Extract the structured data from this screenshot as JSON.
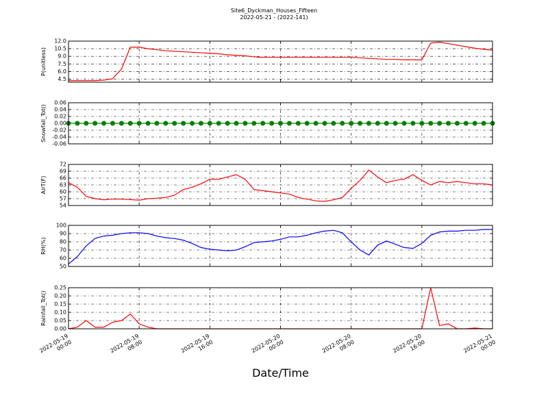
{
  "title": "Site6_Dyckman_Houses_Fifteen",
  "subtitle": "2022-05-21 - (2022-141)",
  "chart_data": [
    {
      "type": "line",
      "ylabel": "P(unitless)",
      "color": "#ff0000",
      "grid": true,
      "x": [
        "2022-05-19 00:00",
        "2022-05-19 01:00",
        "2022-05-19 02:00",
        "2022-05-19 03:00",
        "2022-05-19 04:00",
        "2022-05-19 05:00",
        "2022-05-19 06:00",
        "2022-05-19 07:00",
        "2022-05-19 08:00",
        "2022-05-19 09:00",
        "2022-05-19 10:00",
        "2022-05-19 11:00",
        "2022-05-19 12:00",
        "2022-05-19 13:00",
        "2022-05-19 14:00",
        "2022-05-19 15:00",
        "2022-05-19 16:00",
        "2022-05-19 17:00",
        "2022-05-19 18:00",
        "2022-05-19 19:00",
        "2022-05-19 20:00",
        "2022-05-19 21:00",
        "2022-05-19 22:00",
        "2022-05-19 23:00",
        "2022-05-20 00:00",
        "2022-05-20 01:00",
        "2022-05-20 02:00",
        "2022-05-20 03:00",
        "2022-05-20 04:00",
        "2022-05-20 05:00",
        "2022-05-20 06:00",
        "2022-05-20 07:00",
        "2022-05-20 08:00",
        "2022-05-20 09:00",
        "2022-05-20 10:00",
        "2022-05-20 11:00",
        "2022-05-20 12:00",
        "2022-05-20 13:00",
        "2022-05-20 14:00",
        "2022-05-20 15:00",
        "2022-05-20 16:00",
        "2022-05-20 17:00",
        "2022-05-20 18:00",
        "2022-05-20 19:00",
        "2022-05-20 20:00",
        "2022-05-20 21:00",
        "2022-05-20 22:00",
        "2022-05-20 23:00",
        "2022-05-21 00:00"
      ],
      "values": [
        4.2,
        4.2,
        4.2,
        4.2,
        4.3,
        4.6,
        6.5,
        10.8,
        10.8,
        10.5,
        10.3,
        10.1,
        10.0,
        9.9,
        9.8,
        9.7,
        9.6,
        9.5,
        9.3,
        9.2,
        9.1,
        8.9,
        8.8,
        8.8,
        8.8,
        8.8,
        8.8,
        8.8,
        8.8,
        8.8,
        8.8,
        8.8,
        8.8,
        8.7,
        8.6,
        8.5,
        8.4,
        8.4,
        8.3,
        8.3,
        8.3,
        11.6,
        11.8,
        11.5,
        11.2,
        10.9,
        10.6,
        10.4,
        10.2
      ],
      "xlim": [
        "2022-05-19 00:00",
        "2022-05-21 00:00"
      ],
      "xticks": [
        "2022-05-19 00:00",
        "2022-05-19 08:00",
        "2022-05-19 16:00",
        "2022-05-20 00:00",
        "2022-05-20 08:00",
        "2022-05-20 16:00",
        "2022-05-21 00:00"
      ],
      "ylim": [
        3.9,
        12
      ],
      "yticks": [
        {
          "value": 4.5,
          "label": "4.5"
        },
        {
          "value": 6,
          "label": "6.0"
        },
        {
          "value": 7.5,
          "label": "7.5"
        },
        {
          "value": 9,
          "label": "9.0"
        },
        {
          "value": 10.5,
          "label": "10.5"
        },
        {
          "value": 12,
          "label": "12.0"
        }
      ]
    },
    {
      "type": "line-markers",
      "ylabel": "Snowfall_Tot()",
      "color": "#008000",
      "grid": true,
      "x": [
        "2022-05-19 00:00",
        "2022-05-19 01:00",
        "2022-05-19 02:00",
        "2022-05-19 03:00",
        "2022-05-19 04:00",
        "2022-05-19 05:00",
        "2022-05-19 06:00",
        "2022-05-19 07:00",
        "2022-05-19 08:00",
        "2022-05-19 09:00",
        "2022-05-19 10:00",
        "2022-05-19 11:00",
        "2022-05-19 12:00",
        "2022-05-19 13:00",
        "2022-05-19 14:00",
        "2022-05-19 15:00",
        "2022-05-19 16:00",
        "2022-05-19 17:00",
        "2022-05-19 18:00",
        "2022-05-19 19:00",
        "2022-05-19 20:00",
        "2022-05-19 21:00",
        "2022-05-19 22:00",
        "2022-05-19 23:00",
        "2022-05-20 00:00",
        "2022-05-20 01:00",
        "2022-05-20 02:00",
        "2022-05-20 03:00",
        "2022-05-20 04:00",
        "2022-05-20 05:00",
        "2022-05-20 06:00",
        "2022-05-20 07:00",
        "2022-05-20 08:00",
        "2022-05-20 09:00",
        "2022-05-20 10:00",
        "2022-05-20 11:00",
        "2022-05-20 12:00",
        "2022-05-20 13:00",
        "2022-05-20 14:00",
        "2022-05-20 15:00",
        "2022-05-20 16:00",
        "2022-05-20 17:00",
        "2022-05-20 18:00",
        "2022-05-20 19:00",
        "2022-05-20 20:00",
        "2022-05-20 21:00",
        "2022-05-20 22:00",
        "2022-05-20 23:00",
        "2022-05-21 00:00"
      ],
      "values": [
        0,
        0,
        0,
        0,
        0,
        0,
        0,
        0,
        0,
        0,
        0,
        0,
        0,
        0,
        0,
        0,
        0,
        0,
        0,
        0,
        0,
        0,
        0,
        0,
        0,
        0,
        0,
        0,
        0,
        0,
        0,
        0,
        0,
        0,
        0,
        0,
        0,
        0,
        0,
        0,
        0,
        0,
        0,
        0,
        0,
        0,
        0,
        0,
        0
      ],
      "xlim": [
        "2022-05-19 00:00",
        "2022-05-21 00:00"
      ],
      "xticks": [
        "2022-05-19 00:00",
        "2022-05-19 08:00",
        "2022-05-19 16:00",
        "2022-05-20 00:00",
        "2022-05-20 08:00",
        "2022-05-20 16:00",
        "2022-05-21 00:00"
      ],
      "ylim": [
        -0.06,
        0.06
      ],
      "yticks": [
        -0.06,
        -0.04,
        -0.02,
        {
          "value": 0,
          "label": "0.00"
        },
        0.02,
        0.04,
        0.06
      ]
    },
    {
      "type": "line",
      "ylabel": "AirT(F)",
      "color": "#ff0000",
      "grid": true,
      "x": [
        "2022-05-19 00:00",
        "2022-05-19 01:00",
        "2022-05-19 02:00",
        "2022-05-19 03:00",
        "2022-05-19 04:00",
        "2022-05-19 05:00",
        "2022-05-19 06:00",
        "2022-05-19 07:00",
        "2022-05-19 08:00",
        "2022-05-19 09:00",
        "2022-05-19 10:00",
        "2022-05-19 11:00",
        "2022-05-19 12:00",
        "2022-05-19 13:00",
        "2022-05-19 14:00",
        "2022-05-19 15:00",
        "2022-05-19 16:00",
        "2022-05-19 17:00",
        "2022-05-19 18:00",
        "2022-05-19 19:00",
        "2022-05-19 20:00",
        "2022-05-19 21:00",
        "2022-05-19 22:00",
        "2022-05-19 23:00",
        "2022-05-20 00:00",
        "2022-05-20 01:00",
        "2022-05-20 02:00",
        "2022-05-20 03:00",
        "2022-05-20 04:00",
        "2022-05-20 05:00",
        "2022-05-20 06:00",
        "2022-05-20 07:00",
        "2022-05-20 08:00",
        "2022-05-20 09:00",
        "2022-05-20 10:00",
        "2022-05-20 11:00",
        "2022-05-20 12:00",
        "2022-05-20 13:00",
        "2022-05-20 14:00",
        "2022-05-20 15:00",
        "2022-05-20 16:00",
        "2022-05-20 17:00",
        "2022-05-20 18:00",
        "2022-05-20 19:00",
        "2022-05-20 20:00",
        "2022-05-20 21:00",
        "2022-05-20 22:00",
        "2022-05-20 23:00",
        "2022-05-21 00:00"
      ],
      "values": [
        64,
        62,
        58,
        57,
        56.5,
        56.8,
        56.8,
        56.6,
        56.3,
        57,
        57.2,
        57.5,
        58.5,
        61,
        62,
        63.5,
        65.5,
        65.5,
        66.5,
        67.5,
        65.5,
        61,
        60.5,
        60,
        59.5,
        59,
        57.5,
        56.8,
        56,
        55.8,
        56.5,
        57.5,
        61.5,
        65,
        69.5,
        66.5,
        64,
        65,
        65.5,
        67.5,
        65,
        63,
        64.5,
        64,
        64.5,
        64,
        63.5,
        63.5,
        63
      ],
      "xlim": [
        "2022-05-19 00:00",
        "2022-05-21 00:00"
      ],
      "xticks": [
        "2022-05-19 00:00",
        "2022-05-19 08:00",
        "2022-05-19 16:00",
        "2022-05-20 00:00",
        "2022-05-20 08:00",
        "2022-05-20 16:00",
        "2022-05-21 00:00"
      ],
      "ylim": [
        54,
        72
      ],
      "yticks": [
        54,
        57,
        60,
        63,
        66,
        69,
        72
      ]
    },
    {
      "type": "line",
      "ylabel": "RH(%)",
      "color": "#0000ff",
      "grid": true,
      "x": [
        "2022-05-19 00:00",
        "2022-05-19 01:00",
        "2022-05-19 02:00",
        "2022-05-19 03:00",
        "2022-05-19 04:00",
        "2022-05-19 05:00",
        "2022-05-19 06:00",
        "2022-05-19 07:00",
        "2022-05-19 08:00",
        "2022-05-19 09:00",
        "2022-05-19 10:00",
        "2022-05-19 11:00",
        "2022-05-19 12:00",
        "2022-05-19 13:00",
        "2022-05-19 14:00",
        "2022-05-19 15:00",
        "2022-05-19 16:00",
        "2022-05-19 17:00",
        "2022-05-19 18:00",
        "2022-05-19 19:00",
        "2022-05-19 20:00",
        "2022-05-19 21:00",
        "2022-05-19 22:00",
        "2022-05-19 23:00",
        "2022-05-20 00:00",
        "2022-05-20 01:00",
        "2022-05-20 02:00",
        "2022-05-20 03:00",
        "2022-05-20 04:00",
        "2022-05-20 05:00",
        "2022-05-20 06:00",
        "2022-05-20 07:00",
        "2022-05-20 08:00",
        "2022-05-20 09:00",
        "2022-05-20 10:00",
        "2022-05-20 11:00",
        "2022-05-20 12:00",
        "2022-05-20 13:00",
        "2022-05-20 14:00",
        "2022-05-20 15:00",
        "2022-05-20 16:00",
        "2022-05-20 17:00",
        "2022-05-20 18:00",
        "2022-05-20 19:00",
        "2022-05-20 20:00",
        "2022-05-20 21:00",
        "2022-05-20 22:00",
        "2022-05-20 23:00",
        "2022-05-21 00:00"
      ],
      "values": [
        53,
        62,
        75,
        84,
        87,
        88,
        90,
        91,
        91,
        90,
        87,
        85,
        84,
        82,
        78,
        73,
        71,
        70,
        69,
        70,
        74,
        79,
        80,
        81,
        83,
        86,
        86,
        88,
        91,
        93,
        94,
        91,
        80,
        70,
        64,
        76,
        81,
        77,
        73,
        72,
        78,
        88,
        92,
        93,
        93,
        94,
        94,
        95,
        95
      ],
      "xlim": [
        "2022-05-19 00:00",
        "2022-05-21 00:00"
      ],
      "xticks": [
        "2022-05-19 00:00",
        "2022-05-19 08:00",
        "2022-05-19 16:00",
        "2022-05-20 00:00",
        "2022-05-20 08:00",
        "2022-05-20 16:00",
        "2022-05-21 00:00"
      ],
      "ylim": [
        50,
        100
      ],
      "yticks": [
        50,
        60,
        70,
        80,
        90,
        100
      ]
    },
    {
      "type": "line",
      "ylabel": "Rainfall_Tot()",
      "xlabel": "Date/Time",
      "color": "#ff0000",
      "grid": true,
      "x": [
        "2022-05-19 00:00",
        "2022-05-19 01:00",
        "2022-05-19 02:00",
        "2022-05-19 03:00",
        "2022-05-19 04:00",
        "2022-05-19 05:00",
        "2022-05-19 06:00",
        "2022-05-19 07:00",
        "2022-05-19 08:00",
        "2022-05-19 09:00",
        "2022-05-19 10:00",
        "2022-05-19 11:00",
        "2022-05-19 12:00",
        "2022-05-19 13:00",
        "2022-05-19 14:00",
        "2022-05-19 15:00",
        "2022-05-19 16:00",
        "2022-05-19 17:00",
        "2022-05-19 18:00",
        "2022-05-19 19:00",
        "2022-05-19 20:00",
        "2022-05-19 21:00",
        "2022-05-19 22:00",
        "2022-05-19 23:00",
        "2022-05-20 00:00",
        "2022-05-20 01:00",
        "2022-05-20 02:00",
        "2022-05-20 03:00",
        "2022-05-20 04:00",
        "2022-05-20 05:00",
        "2022-05-20 06:00",
        "2022-05-20 07:00",
        "2022-05-20 08:00",
        "2022-05-20 09:00",
        "2022-05-20 10:00",
        "2022-05-20 11:00",
        "2022-05-20 12:00",
        "2022-05-20 13:00",
        "2022-05-20 14:00",
        "2022-05-20 15:00",
        "2022-05-20 16:00",
        "2022-05-20 17:00",
        "2022-05-20 18:00",
        "2022-05-20 19:00",
        "2022-05-20 20:00",
        "2022-05-20 21:00",
        "2022-05-20 22:00",
        "2022-05-20 23:00",
        "2022-05-21 00:00"
      ],
      "values": [
        0,
        0.01,
        0.05,
        0.01,
        0.01,
        0.04,
        0.05,
        0.09,
        0.03,
        0.01,
        0,
        0,
        0,
        0,
        0,
        0,
        0,
        0,
        0,
        0,
        0,
        0,
        0,
        0,
        0,
        0,
        0,
        0,
        0,
        0,
        0,
        0,
        0,
        0,
        0,
        0,
        0,
        0,
        0,
        0,
        0,
        0.25,
        0.02,
        0.03,
        0,
        0,
        0.005,
        0,
        0
      ],
      "xlim": [
        "2022-05-19 00:00",
        "2022-05-21 00:00"
      ],
      "xticks": [
        "2022-05-19 00:00",
        "2022-05-19 08:00",
        "2022-05-19 16:00",
        "2022-05-20 00:00",
        "2022-05-20 08:00",
        "2022-05-20 16:00",
        "2022-05-21 00:00"
      ],
      "ylim": [
        0,
        0.25
      ],
      "yticks": [
        {
          "value": 0,
          "label": "0.00"
        },
        0.05,
        {
          "value": 0.1,
          "label": "0.10"
        },
        0.15,
        {
          "value": 0.2,
          "label": "0.20"
        },
        0.25
      ]
    }
  ]
}
